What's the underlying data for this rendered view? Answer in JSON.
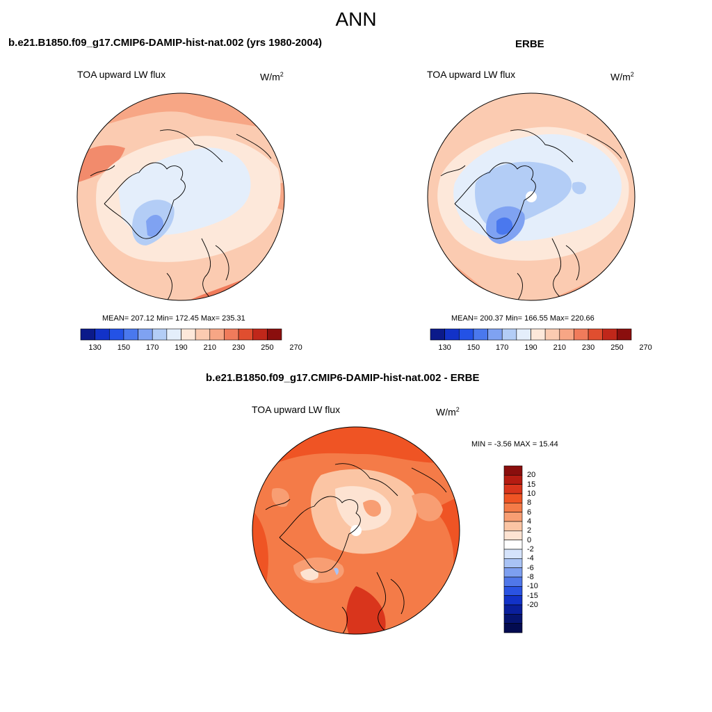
{
  "title": "ANN",
  "panels": [
    {
      "title": "b.e21.B1850.f09_g17.CMIP6-DAMIP-hist-nat.002 (yrs 1980-2004)",
      "variable": "TOA upward LW flux",
      "units_base": "W/m",
      "units_exp": "2",
      "stats": "MEAN= 207.12  Min= 172.45  Max= 235.31",
      "mean": 207.12,
      "min": 172.45,
      "max": 235.31
    },
    {
      "title": "ERBE",
      "variable": "TOA upward LW flux",
      "units_base": "W/m",
      "units_exp": "2",
      "stats": "MEAN= 200.37  Min= 166.55  Max= 220.66",
      "mean": 200.37,
      "min": 166.55,
      "max": 220.66
    },
    {
      "title": "b.e21.B1850.f09_g17.CMIP6-DAMIP-hist-nat.002 - ERBE",
      "variable": "TOA upward LW flux",
      "units_base": "W/m",
      "units_exp": "2",
      "stats": "MIN =  -3.56 MAX =  15.44",
      "min": -3.56,
      "max": 15.44
    }
  ],
  "abs_colorbar": {
    "colors": [
      "#0b1a8a",
      "#1232c8",
      "#2352e6",
      "#4a78ee",
      "#7fa2f2",
      "#b3cdf6",
      "#e4eefb",
      "#fde8da",
      "#fbcbb1",
      "#f7a685",
      "#f07b5b",
      "#e04e2f",
      "#c0271a",
      "#8a0e0d"
    ],
    "ticks": [
      "130",
      "150",
      "170",
      "190",
      "210",
      "230",
      "250",
      "270"
    ]
  },
  "diff_colorbar": {
    "colors": [
      "#8a0e0d",
      "#b51c12",
      "#d9351c",
      "#ef5424",
      "#f47b48",
      "#f89e73",
      "#fbc5a4",
      "#fde3d2",
      "#ffffff",
      "#d5e3fb",
      "#a9c3f5",
      "#7d9ff0",
      "#5077e9",
      "#2a53e2",
      "#1232c8",
      "#0a1f9c",
      "#061470",
      "#030b50"
    ],
    "ticks": [
      "20",
      "15",
      "10",
      "8",
      "6",
      "4",
      "2",
      "0",
      "-2",
      "-4",
      "-6",
      "-8",
      "-10",
      "-15",
      "-20"
    ]
  }
}
